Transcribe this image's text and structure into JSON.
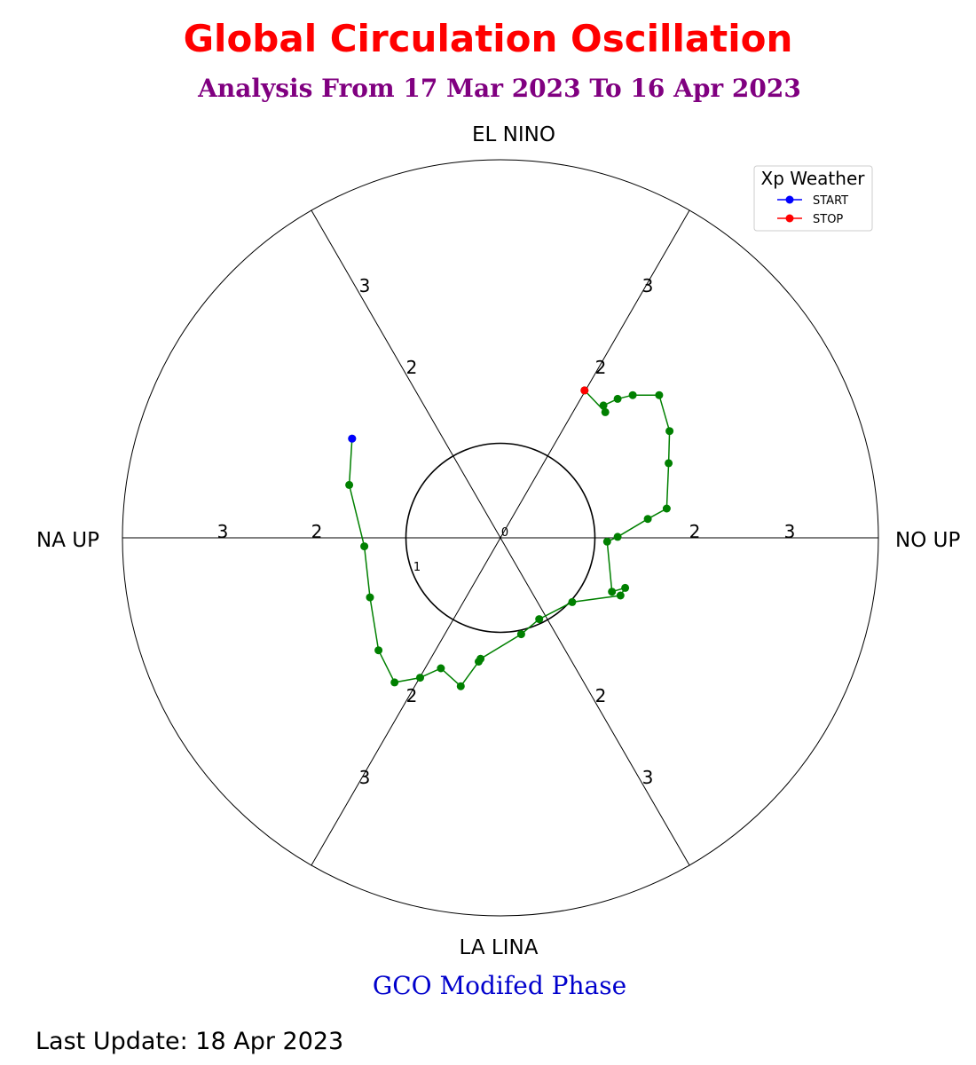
{
  "colors": {
    "title": "#ff0000",
    "subtitle": "#800080",
    "footer": "#0000cc",
    "trajectory": "#008000",
    "start": "#0000ff",
    "stop": "#ff0000",
    "lines": "#000000"
  },
  "chart_data": {
    "type": "scatter",
    "title": "Global Circulation Oscillation",
    "subtitle": "Analysis From 17 Mar 2023 To 16 Apr 2023",
    "footer_label": "GCO Modifed Phase",
    "last_update": "Last Update: 18 Apr 2023",
    "axes": {
      "top": "EL NINO",
      "right": "NO UP",
      "bottom": "LA LINA",
      "left": "NA UP"
    },
    "xlim": [
      -4,
      4
    ],
    "ylim": [
      -4,
      4
    ],
    "grid": false,
    "radial_ticks": [
      "1",
      "2",
      "3"
    ],
    "center_label": "0",
    "legend": {
      "title": "Xp Weather",
      "placement": "top-right",
      "entries": [
        {
          "label": "START",
          "color": "#0000ff"
        },
        {
          "label": "STOP",
          "color": "#ff0000"
        }
      ]
    },
    "series": [
      {
        "name": "trajectory",
        "color": "#008000",
        "x": [
          -1.57,
          -1.6,
          -1.44,
          -1.38,
          -1.29,
          -1.12,
          -0.85,
          -0.63,
          -0.42,
          -0.23,
          -0.21,
          0.22,
          0.41,
          0.76,
          1.27,
          1.32,
          1.18,
          1.13,
          1.24,
          1.56,
          1.76,
          1.78,
          1.79,
          1.68,
          1.4,
          1.24,
          1.09,
          1.11,
          0.89
        ],
        "y": [
          1.05,
          0.56,
          -0.09,
          -0.63,
          -1.19,
          -1.53,
          -1.48,
          -1.38,
          -1.57,
          -1.31,
          -1.28,
          -1.02,
          -0.86,
          -0.68,
          -0.61,
          -0.53,
          -0.57,
          -0.04,
          0.01,
          0.2,
          0.31,
          0.79,
          1.13,
          1.51,
          1.51,
          1.47,
          1.4,
          1.33,
          1.56
        ]
      }
    ],
    "start_point": {
      "label": "START",
      "x": -1.57,
      "y": 1.05
    },
    "stop_point": {
      "label": "STOP",
      "x": 0.89,
      "y": 1.56
    }
  }
}
